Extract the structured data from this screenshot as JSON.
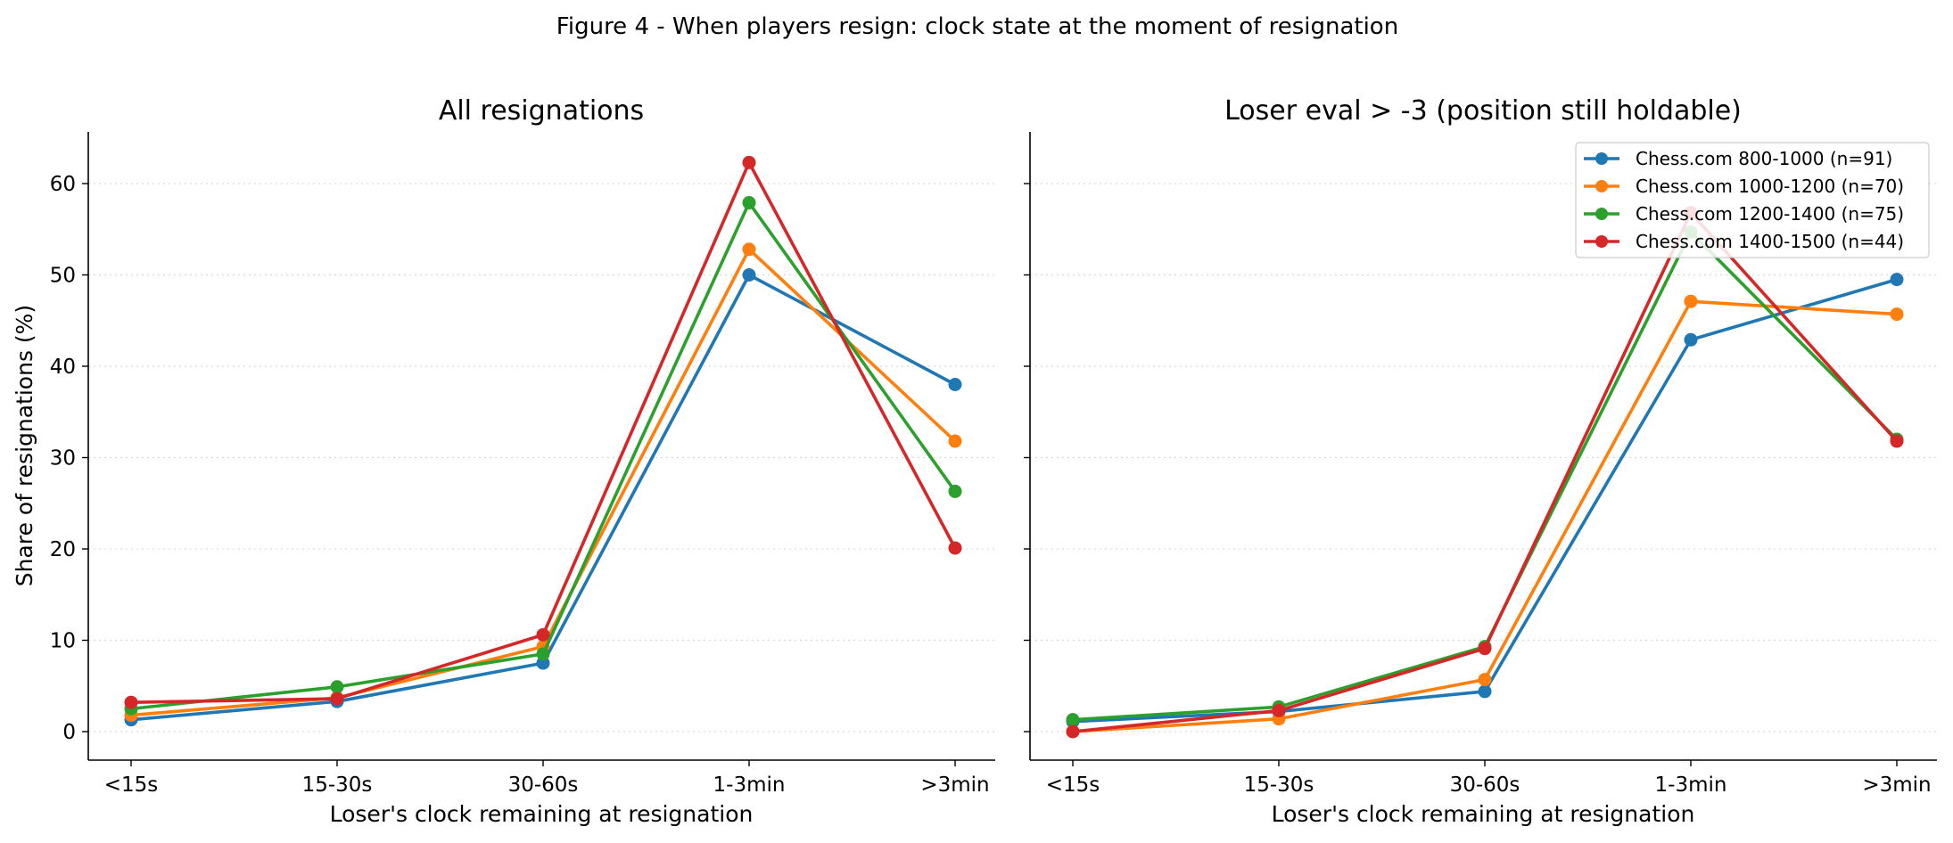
{
  "figure": {
    "title": "Figure 4 - When players resign: clock state at the moment of resignation"
  },
  "chart_data": [
    {
      "type": "line",
      "title": "All resignations",
      "xlabel": "Loser's clock remaining at resignation",
      "ylabel": "Share of resignations (%)",
      "categories": [
        "<15s",
        "15-30s",
        "30-60s",
        "1-3min",
        ">3min"
      ],
      "ylim": [
        -3,
        65
      ],
      "yticks": [
        0,
        10,
        20,
        30,
        40,
        50,
        60
      ],
      "grid": "horizontal dotted",
      "series": [
        {
          "name": "Chess.com 800-1000 (n=91)",
          "color": "#1f77b4",
          "values": [
            1.3,
            3.3,
            7.5,
            50.0,
            38.0
          ]
        },
        {
          "name": "Chess.com 1000-1200 (n=70)",
          "color": "#ff7f0e",
          "values": [
            1.8,
            3.7,
            9.3,
            52.8,
            31.8
          ]
        },
        {
          "name": "Chess.com 1200-1400 (n=75)",
          "color": "#2ca02c",
          "values": [
            2.5,
            4.9,
            8.5,
            57.9,
            26.3
          ]
        },
        {
          "name": "Chess.com 1400-1500 (n=44)",
          "color": "#d62728",
          "values": [
            3.2,
            3.6,
            10.6,
            62.3,
            20.1
          ]
        }
      ]
    },
    {
      "type": "line",
      "title": "Loser eval > -3 (position still holdable)",
      "xlabel": "Loser's clock remaining at resignation",
      "categories": [
        "<15s",
        "15-30s",
        "30-60s",
        "1-3min",
        ">3min"
      ],
      "ylim": [
        -3,
        65
      ],
      "grid": "horizontal dotted",
      "legend": "top-right",
      "series": [
        {
          "name": "Chess.com 800-1000 (n=91)",
          "color": "#1f77b4",
          "values": [
            1.1,
            2.2,
            4.4,
            42.9,
            49.5
          ]
        },
        {
          "name": "Chess.com 1000-1200 (n=70)",
          "color": "#ff7f0e",
          "values": [
            0.0,
            1.4,
            5.7,
            47.1,
            45.7
          ]
        },
        {
          "name": "Chess.com 1200-1400 (n=75)",
          "color": "#2ca02c",
          "values": [
            1.3,
            2.7,
            9.3,
            54.7,
            32.0
          ]
        },
        {
          "name": "Chess.com 1400-1500 (n=44)",
          "color": "#d62728",
          "values": [
            0.0,
            2.3,
            9.1,
            56.8,
            31.8
          ]
        }
      ]
    }
  ]
}
